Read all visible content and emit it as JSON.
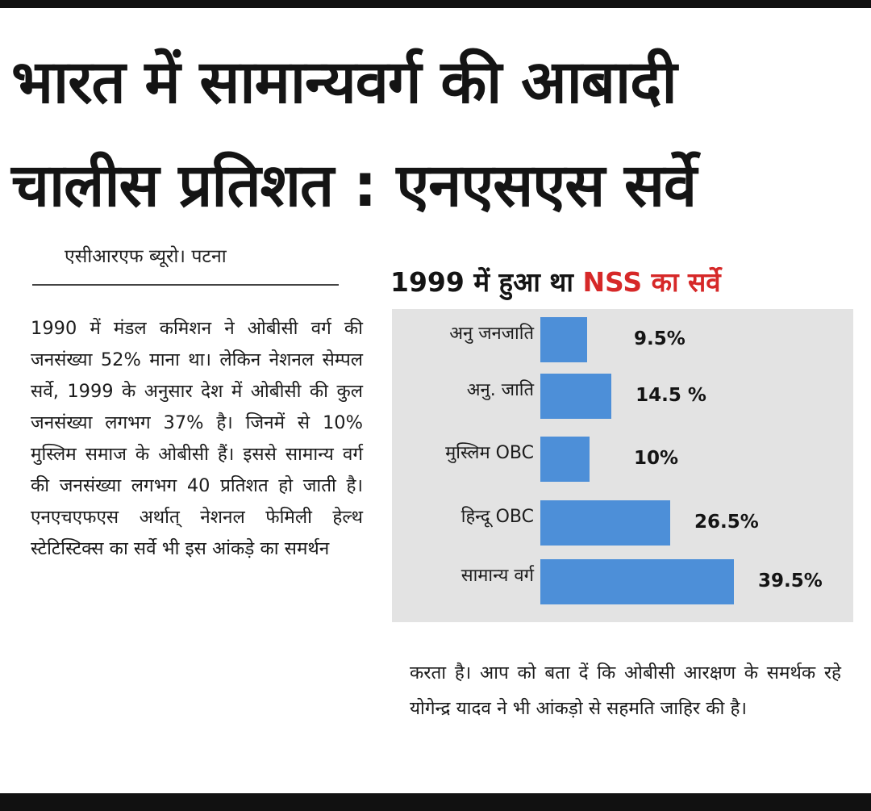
{
  "headline": {
    "line1": "भारत में सामान्यवर्ग की आबादी",
    "line2": "चालीस प्रतिशत : एनएसएस सर्वे"
  },
  "byline": "एसीआरएफ ब्यूरो। पटना",
  "body_left": "1990 में मंडल कमिशन ने ओबीसी वर्ग की जनसंख्या 52% माना था। लेकिन नेशनल सेम्पल सर्वे, 1999 के अनुसार देश में ओबीसी की कुल जनसंख्या लगभग 37% है। जिनमें से 10% मुस्लिम समाज के ओबीसी हैं। इससे सामान्य वर्ग की जनसंख्या लगभग 40 प्रतिशत हो जाती है। एनएचएफएस अर्थात् नेशनल फेमिली हेल्थ स्टेटिस्टिक्स का सर्वे भी इस आंकड़े का समर्थन",
  "body_right": "करता है। आप को बता दें कि ओबीसी आरक्षण के समर्थक रहे योगेन्द्र यादव ने भी आंकड़ो से सहमति जाहिर की है।",
  "chart_data": {
    "type": "bar",
    "orientation": "horizontal",
    "title": "1999 में हुआ था",
    "title_accent": "NSS का सर्वे",
    "categories": [
      "अनु जनजाति",
      "अनु. जाति",
      "मुस्लिम OBC",
      "हिन्दू OBC",
      "सामान्य वर्ग"
    ],
    "values": [
      9.5,
      14.5,
      10,
      26.5,
      39.5
    ],
    "value_labels": [
      "9.5%",
      "14.5 %",
      "10%",
      "26.5%",
      "39.5%"
    ],
    "xlim": [
      0,
      40
    ],
    "grid": false,
    "legend": "none",
    "bar_color": "#4d8fd8",
    "title_accent_color": "#d62828"
  }
}
